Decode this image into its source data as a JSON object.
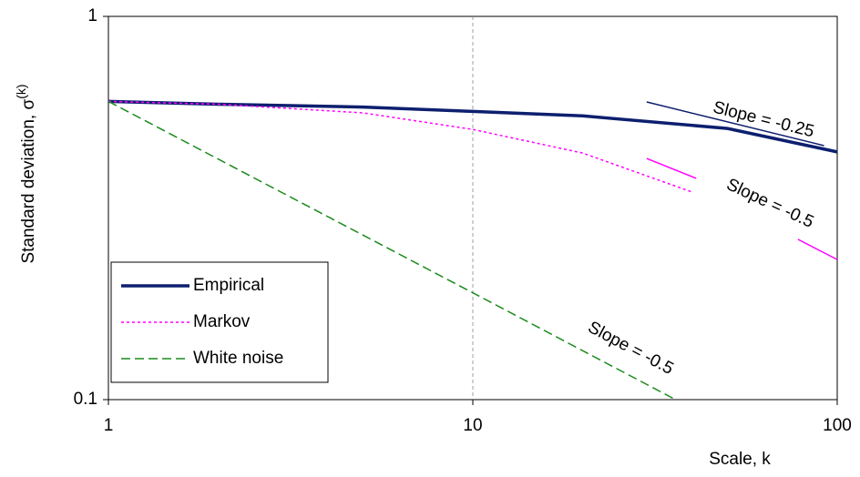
{
  "chart_data": {
    "type": "line",
    "log_x": true,
    "log_y": true,
    "x_label": "Scale, k",
    "y_label": "Standard deviation, σ",
    "y_label_sup": "(k)",
    "xlim": [
      1,
      100
    ],
    "ylim": [
      0.1,
      1
    ],
    "xticks": [
      1,
      10,
      100
    ],
    "yticks": [
      0.1,
      1
    ],
    "series": [
      {
        "name": "Empirical",
        "color": "#0d1f6e",
        "style": "solid",
        "x": [
          1,
          2,
          5,
          10,
          20,
          50,
          100
        ],
        "values": [
          0.6,
          0.59,
          0.58,
          0.565,
          0.55,
          0.51,
          0.443
        ]
      },
      {
        "name": "Markov",
        "color": "#ff00ff",
        "style": "dotted",
        "x": [
          1,
          2,
          5,
          10,
          20,
          40
        ],
        "values": [
          0.6,
          0.59,
          0.56,
          0.507,
          0.44,
          0.348
        ]
      },
      {
        "name": "White noise",
        "color": "#1a8a1a",
        "style": "dashed",
        "x": [
          1,
          10,
          36
        ],
        "values": [
          0.6,
          0.19,
          0.1
        ]
      }
    ],
    "annotations": [
      {
        "text": "Slope = -0.25",
        "color": "#0d1f6e",
        "x": [
          30,
          92
        ],
        "y": [
          0.598,
          0.46
        ]
      },
      {
        "text": "Slope = -0.5",
        "color": "#ff00ff",
        "x": [
          30,
          41
        ],
        "y": [
          0.426,
          0.378
        ]
      },
      {
        "text": "Slope = -0.5",
        "color": "#1a8a1a"
      }
    ],
    "extra_lines": [
      {
        "color": "#ff00ff",
        "x": [
          78,
          100
        ],
        "y": [
          0.262,
          0.232
        ]
      }
    ]
  }
}
